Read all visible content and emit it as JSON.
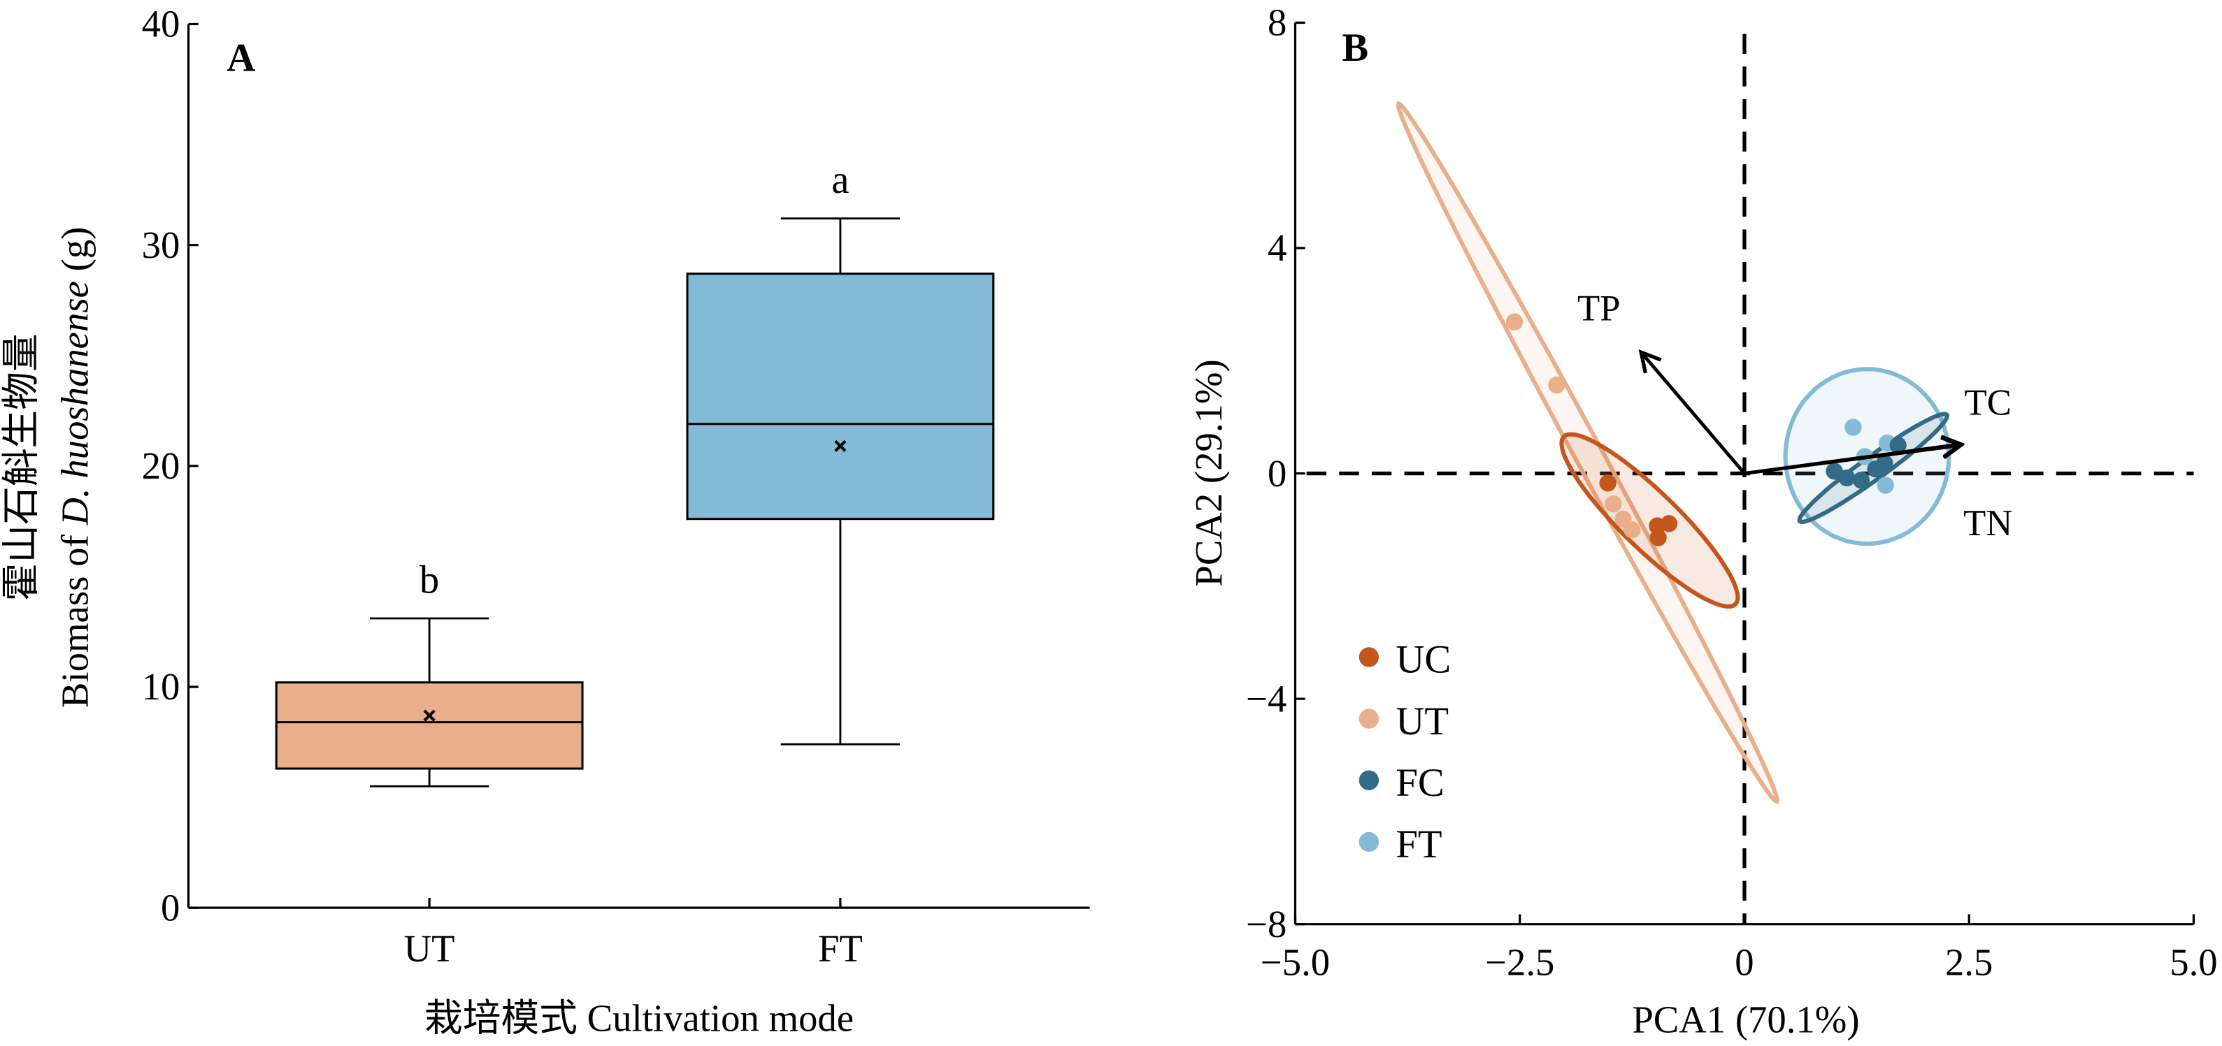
{
  "chart_data": [
    {
      "type": "box",
      "panel_label": "A",
      "categories": [
        "UT",
        "FT"
      ],
      "xlabel": "栽培模式 Cultivation mode",
      "ylabel_line1": "霍山石斛生物量",
      "ylabel_line2_prefix": "Biomass of ",
      "ylabel_line2_italic": "D. huoshanense",
      "ylabel_line2_suffix": " (g)",
      "ylim": [
        0,
        40
      ],
      "yticks": [
        "0",
        "10",
        "20",
        "30",
        "40"
      ],
      "grid": false,
      "boxes": [
        {
          "category": "UT",
          "whisker_low": 5.5,
          "q1": 6.3,
          "median": 8.4,
          "q3": 10.2,
          "whisker_high": 13.1,
          "mean": 8.7,
          "letter": "b",
          "color": "#e9ae8a"
        },
        {
          "category": "FT",
          "whisker_low": 7.4,
          "q1": 17.6,
          "median": 21.9,
          "q3": 28.7,
          "whisker_high": 31.2,
          "mean": 20.9,
          "letter": "a",
          "color": "#83bad6"
        }
      ]
    },
    {
      "type": "scatter",
      "panel_label": "B",
      "xlabel": "PCA1 (70.1%)",
      "ylabel": "PCA2 (29.1%)",
      "xlim": [
        -5,
        5
      ],
      "ylim": [
        -8,
        8
      ],
      "xticks": [
        {
          "v": -5,
          "label": "−5.0"
        },
        {
          "v": -2.5,
          "label": "−2.5"
        },
        {
          "v": 0,
          "label": "0"
        },
        {
          "v": 2.5,
          "label": "2.5"
        },
        {
          "v": 5,
          "label": "5.0"
        }
      ],
      "yticks": [
        {
          "v": -8,
          "label": "−8"
        },
        {
          "v": -4,
          "label": "−4"
        },
        {
          "v": 0,
          "label": "0"
        },
        {
          "v": 4,
          "label": "4"
        },
        {
          "v": 8,
          "label": "8"
        }
      ],
      "grid": false,
      "legend_position": "bottom-left",
      "series": [
        {
          "name": "UC",
          "color": "#c4561c",
          "points": [
            [
              -1.52,
              -0.17
            ],
            [
              -0.97,
              -0.93
            ],
            [
              -0.84,
              -0.89
            ],
            [
              -0.96,
              -1.14
            ]
          ],
          "ellipse": {
            "center": [
              -1.055,
              -0.834
            ],
            "major": [
              0.956,
              -1.486
            ],
            "minor": [
              0.22,
              0.36
            ]
          }
        },
        {
          "name": "UT",
          "color": "#e9ae8a",
          "points": [
            [
              -2.56,
              2.69
            ],
            [
              -2.09,
              1.57
            ],
            [
              -1.46,
              -0.54
            ],
            [
              -1.35,
              -0.81
            ],
            [
              -1.25,
              -1.0
            ]
          ],
          "ellipse": {
            "center": [
              -1.745,
              0.37
            ],
            "major": [
              2.105,
              -6.19
            ],
            "minor": [
              0.133,
              0.115
            ]
          }
        },
        {
          "name": "FC",
          "color": "#336a85",
          "points": [
            [
              1.0,
              0.04
            ],
            [
              1.14,
              -0.08
            ],
            [
              1.3,
              -0.12
            ],
            [
              1.46,
              0.08
            ],
            [
              1.56,
              0.18
            ],
            [
              1.71,
              0.5
            ]
          ],
          "ellipse": {
            "center": [
              1.434,
              0.097
            ],
            "major": [
              0.819,
              0.943
            ],
            "minor": [
              0.075,
              -0.167
            ]
          }
        },
        {
          "name": "FT",
          "color": "#83bad6",
          "points": [
            [
              1.21,
              0.82
            ],
            [
              1.57,
              -0.21
            ],
            [
              1.59,
              0.54
            ],
            [
              1.34,
              0.3
            ]
          ],
          "ellipse": {
            "center": [
              1.366,
              0.302
            ],
            "major": [
              0.91,
              0.0
            ],
            "minor": [
              0.0,
              -1.55
            ]
          }
        }
      ],
      "vectors": [
        {
          "name": "TP",
          "end": [
            -1.15,
            2.15
          ],
          "label_at": [
            -1.62,
            2.94
          ]
        },
        {
          "name": "TC",
          "end": [
            2.41,
            0.52
          ],
          "label_at": [
            2.71,
            1.27
          ]
        },
        {
          "name": "TN",
          "end": [
            2.41,
            0.5
          ],
          "label_at": [
            2.71,
            -0.87
          ]
        }
      ]
    }
  ]
}
